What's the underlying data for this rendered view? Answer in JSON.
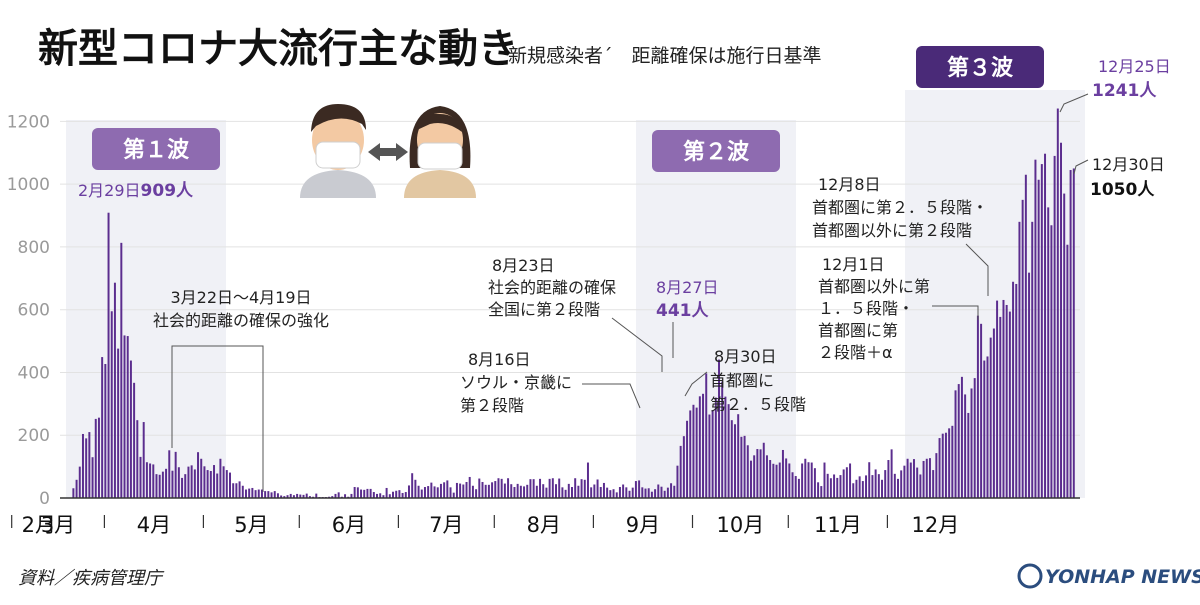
{
  "title": "新型コロナ大流行主な動き",
  "subtitle": "新規感染者´　距離確保は施行日基準",
  "source": "資料／疾病管理庁",
  "logo": "YONHAP NEWS",
  "colors": {
    "bar": "#5b2d8e",
    "badge": "#8e6bb0",
    "badge_dark": "#4a2a78",
    "highlight": "#eef0f5",
    "accent": "#6b3fa0"
  },
  "waves": {
    "w1": "第１波",
    "w2": "第２波",
    "w3": "第３波"
  },
  "annotations": {
    "peak1_date": "2月29日",
    "peak1_value": "909人",
    "distancing_date": "3月22日～4月19日",
    "distancing_text": "社会的距離の確保の強化",
    "aug16_date": "8月16日",
    "aug16_l1": "ソウル・京畿に",
    "aug16_l2": "第２段階",
    "aug23_date": "8月23日",
    "aug23_l1": "社会的距離の確保",
    "aug23_l2": "全国に第２段階",
    "aug27_date": "8月27日",
    "aug27_value": "441人",
    "aug30_date": "8月30日",
    "aug30_l1": "首都圏に",
    "aug30_l2": "第２．５段階",
    "dec8_date": "12月8日",
    "dec8_l1": "首都圏に第２．５段階・",
    "dec8_l2": "首都圏以外に第２段階",
    "dec1_date": "12月1日",
    "dec1_l1": "首都圏以外に第",
    "dec1_l2": "１．５段階・",
    "dec1_l3": "首都圏に第",
    "dec1_l4": "２段階＋α",
    "dec25_date": "12月25日",
    "dec25_value": "1241人",
    "dec30_date": "12月30日",
    "dec30_value": "1050人"
  },
  "chart_data": {
    "type": "bar",
    "title": "新型コロナ大流行主な動き",
    "subtitle": "新規感染者´　距離確保は施行日基準",
    "x_start": "2020-02-18",
    "x_end": "2020-12-30",
    "x_tick_labels": [
      "2月",
      "3月",
      "4月",
      "5月",
      "6月",
      "7月",
      "8月",
      "9月",
      "10月",
      "11月",
      "12月"
    ],
    "y_ticks": [
      0,
      200,
      400,
      600,
      800,
      1000,
      1200
    ],
    "ylim": [
      0,
      1300
    ],
    "grid": true,
    "values": [
      [
        0,
        31,
        15
      ],
      [
        1,
        58,
        64
      ],
      [
        2,
        191,
        116
      ],
      [
        3,
        205,
        130
      ],
      [
        4,
        210,
        141
      ],
      [
        5,
        130,
        200
      ],
      [
        6,
        252,
        286
      ],
      [
        7,
        448,
        308
      ],
      [
        8,
        427,
        296
      ],
      [
        9,
        909,
        282
      ],
      [
        10,
        595,
        600
      ],
      [
        11,
        686,
        591
      ],
      [
        12,
        476,
        601
      ],
      [
        13,
        516,
        599
      ],
      [
        14,
        438,
        586
      ],
      [
        15,
        345,
        516
      ],
      [
        16,
        261,
        471
      ],
      [
        17,
        210,
        337
      ],
      [
        18,
        232,
        319
      ],
      [
        19,
        173,
        212
      ],
      [
        20,
        114,
        114
      ],
      [
        21,
        110,
        100
      ],
      [
        22,
        109,
        100
      ],
      [
        23,
        71,
        102
      ],
      [
        24,
        101,
        78
      ],
      [
        25,
        108,
        118
      ],
      [
        26,
        63,
        114
      ],
      [
        27,
        148,
        63
      ],
      [
        28,
        78,
        77
      ],
      [
        29,
        81,
        89
      ],
      [
        30,
        100,
        103
      ],
      [
        31,
        125,
        90
      ],
      [
        32,
        94,
        85
      ],
      [
        33,
        139,
        143
      ],
      [
        34,
        104,
        51
      ],
      [
        35,
        113,
        92
      ],
      [
        36,
        119,
        117
      ],
      [
        37,
        101,
        98
      ],
      [
        38,
        102,
        84
      ],
      [
        39,
        68,
        60
      ],
      [
        40,
        66,
        29
      ],
      [
        41,
        37,
        45
      ],
      [
        42,
        31,
        41
      ],
      [
        43,
        49,
        36
      ],
      [
        44,
        28,
        36
      ],
      [
        45,
        31,
        35
      ],
      [
        46,
        26,
        24
      ],
      [
        47,
        18,
        21
      ],
      [
        48,
        25,
        18
      ],
      [
        49,
        30,
        19
      ],
      [
        50,
        13,
        16
      ],
      [
        51,
        11,
        11
      ],
      [
        52,
        11,
        7
      ],
      [
        53,
        13,
        14
      ],
      [
        54,
        13,
        11
      ],
      [
        55,
        10,
        12
      ],
      [
        56,
        13,
        10
      ],
      [
        57,
        9,
        5
      ],
      [
        58,
        6,
        6
      ],
      [
        59,
        4,
        14
      ]
    ],
    "annotated_points": [
      {
        "date": "2020-02-29",
        "value": 909
      },
      {
        "date": "2020-08-27",
        "value": 441
      },
      {
        "date": "2020-12-25",
        "value": 1241
      },
      {
        "date": "2020-12-30",
        "value": 1050
      }
    ],
    "daily_values": [
      0,
      0,
      31,
      58,
      100,
      204,
      190,
      210,
      130,
      252,
      256,
      449,
      427,
      909,
      595,
      686,
      476,
      813,
      518,
      516,
      438,
      367,
      248,
      131,
      242,
      114,
      110,
      107,
      76,
      74,
      84,
      93,
      152,
      87,
      147,
      98,
      64,
      76,
      100,
      104,
      91,
      146,
      125,
      101,
      89,
      86,
      105,
      78,
      125,
      101,
      89,
      81,
      47,
      47,
      53,
      39,
      27,
      30,
      32,
      25,
      27,
      27,
      22,
      22,
      18,
      22,
      15,
      8,
      6,
      9,
      13,
      9,
      13,
      11,
      10,
      14,
      6,
      4,
      14,
      3,
      3,
      3,
      4,
      6,
      13,
      18,
      4,
      12,
      4,
      13,
      35,
      34,
      27,
      26,
      29,
      29,
      19,
      13,
      15,
      9,
      32,
      12,
      20,
      23,
      25,
      16,
      19,
      40,
      79,
      58,
      39,
      27,
      35,
      38,
      49,
      37,
      34,
      45,
      50,
      56,
      34,
      17,
      48,
      46,
      43,
      51,
      67,
      39,
      28,
      62,
      51,
      42,
      42,
      50,
      54,
      63,
      61,
      46,
      63,
      44,
      35,
      45,
      39,
      37,
      42,
      60,
      60,
      39,
      61,
      44,
      33,
      61,
      63,
      44,
      62,
      34,
      26,
      45,
      35,
      63,
      39,
      60,
      58,
      113,
      34,
      43,
      59,
      35,
      48,
      33,
      25,
      28,
      18,
      35,
      43,
      34,
      23,
      33,
      54,
      56,
      34,
      30,
      31,
      20,
      28,
      43,
      36,
      23,
      33,
      47,
      39,
      103,
      166,
      197,
      246,
      279,
      297,
      288,
      324,
      332,
      397,
      266,
      280,
      320,
      441,
      371,
      323,
      299,
      248,
      235,
      267,
      195,
      198,
      168,
      119,
      136,
      156,
      155,
      176,
      136,
      121,
      109,
      106,
      113,
      153,
      126,
      110,
      82,
      70,
      61,
      110,
      125,
      114,
      113,
      95,
      50,
      38,
      113,
      77,
      63,
      75,
      64,
      73,
      91,
      98,
      110,
      47,
      58,
      69,
      54,
      72,
      114,
      73,
      91,
      76,
      58,
      89,
      121,
      155,
      77,
      61,
      88,
      103,
      125,
      113,
      124,
      97,
      75,
      118,
      125,
      127,
      89,
      143,
      191,
      205,
      208,
      222,
      230,
      343,
      363,
      386,
      330,
      271,
      349,
      382,
      581,
      555,
      438,
      451,
      511,
      540,
      629,
      577,
      631,
      615,
      594,
      689,
      682,
      880,
      950,
      1030,
      718,
      880,
      1078,
      1014,
      1064,
      1097,
      926,
      869,
      1090,
      1241,
      1132,
      970,
      807,
      1045,
      1050
    ]
  }
}
